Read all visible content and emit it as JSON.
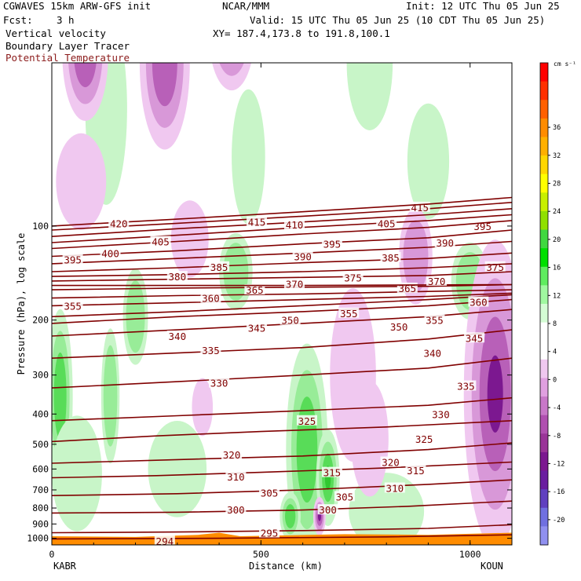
{
  "header": {
    "model": "CGWAVES 15km ARW-GFS init",
    "org": "NCAR/MMM",
    "init": "Init: 12 UTC Thu 05 Jun 25",
    "fcst_label": "Fcst:",
    "fcst_value": "3 h",
    "valid": "Valid: 15 UTC Thu 05 Jun 25 (10 CDT Thu 05 Jun 25)",
    "xy": "XY= 187.4,173.8 to 191.8,100.1",
    "field1": "Vertical velocity",
    "field2": "Boundary Layer Tracer",
    "field3": "Potential Temperature"
  },
  "colors": {
    "theta": "#800000",
    "pt_label": "#8b1a1a",
    "terrain": "#ff8c00"
  },
  "chart_data": {
    "type": "contour-cross-section",
    "ylabel": "Pressure (hPa), log scale",
    "xlabel": "Distance (km)",
    "x_left_label": "KABR",
    "x_right_label": "KOUN",
    "xlim": [
      0,
      1100
    ],
    "ylim_hpa": [
      1050,
      30
    ],
    "y_scale": "log",
    "x_ticks": [
      0,
      500,
      1000
    ],
    "y_ticks": [
      100,
      200,
      300,
      400,
      500,
      600,
      700,
      800,
      900,
      1000
    ],
    "colorbar": {
      "unit": "cm s⁻¹",
      "labels": [
        "36",
        "32",
        "28",
        "24",
        "20",
        "16",
        "12",
        "8",
        "4",
        "0",
        "-4",
        "-8",
        "-12",
        "-16",
        "-20"
      ],
      "colors": [
        "#ff0000",
        "#ff3000",
        "#ff6000",
        "#ff8c00",
        "#ffb000",
        "#ffd700",
        "#ffff00",
        "#c8f000",
        "#90e000",
        "#40d840",
        "#00e000",
        "#60ec60",
        "#a0f8a0",
        "#d4fcd4",
        "#ffffff",
        "#ffffff",
        "#f0c8f0",
        "#e0a0e0",
        "#c878c8",
        "#b050b0",
        "#9a3498",
        "#7c1890",
        "#6a1ea0",
        "#6040c0",
        "#7070e0",
        "#9090f0"
      ]
    },
    "theta_contours": [
      {
        "label": "294",
        "points": [
          [
            0,
            1005
          ],
          [
            400,
            1000
          ],
          [
            800,
            990
          ],
          [
            1100,
            975
          ]
        ],
        "label_pos": [
          [
            270,
            1020
          ]
        ]
      },
      {
        "label": "295",
        "points": [
          [
            0,
            960
          ],
          [
            300,
            955
          ],
          [
            600,
            945
          ],
          [
            900,
            930
          ],
          [
            1100,
            905
          ]
        ],
        "label_pos": [
          [
            520,
            960
          ]
        ]
      },
      {
        "label": "300",
        "points": [
          [
            0,
            830
          ],
          [
            300,
            825
          ],
          [
            600,
            812
          ],
          [
            850,
            790
          ],
          [
            1100,
            760
          ]
        ],
        "label_pos": [
          [
            440,
            810
          ],
          [
            660,
            810
          ]
        ]
      },
      {
        "label": "305",
        "points": [
          [
            0,
            730
          ],
          [
            300,
            720
          ],
          [
            600,
            700
          ],
          [
            900,
            672
          ],
          [
            1100,
            650
          ]
        ],
        "label_pos": [
          [
            520,
            715
          ],
          [
            700,
            735
          ]
        ]
      },
      {
        "label": "310",
        "points": [
          [
            0,
            640
          ],
          [
            250,
            630
          ],
          [
            500,
            615
          ],
          [
            800,
            595
          ],
          [
            1100,
            570
          ]
        ],
        "label_pos": [
          [
            440,
            635
          ],
          [
            820,
            690
          ]
        ]
      },
      {
        "label": "315",
        "points": [
          [
            0,
            575
          ],
          [
            300,
            560
          ],
          [
            600,
            545
          ],
          [
            900,
            520
          ],
          [
            1100,
            495
          ]
        ],
        "label_pos": [
          [
            670,
            615
          ],
          [
            870,
            605
          ]
        ]
      },
      {
        "label": "320",
        "points": [
          [
            0,
            490
          ],
          [
            250,
            470
          ],
          [
            500,
            455
          ],
          [
            800,
            440
          ],
          [
            1100,
            420
          ]
        ],
        "label_pos": [
          [
            430,
            540
          ],
          [
            810,
            570
          ]
        ]
      },
      {
        "label": "325",
        "points": [
          [
            0,
            420
          ],
          [
            300,
            405
          ],
          [
            600,
            390
          ],
          [
            900,
            375
          ],
          [
            1100,
            355
          ]
        ],
        "label_pos": [
          [
            610,
            420
          ],
          [
            890,
            480
          ]
        ]
      },
      {
        "label": "330",
        "points": [
          [
            0,
            330
          ],
          [
            300,
            315
          ],
          [
            600,
            300
          ],
          [
            900,
            285
          ],
          [
            1100,
            265
          ]
        ],
        "label_pos": [
          [
            400,
            318
          ],
          [
            930,
            400
          ]
        ]
      },
      {
        "label": "335",
        "points": [
          [
            0,
            265
          ],
          [
            300,
            255
          ],
          [
            600,
            245
          ],
          [
            900,
            230
          ],
          [
            1100,
            215
          ]
        ],
        "label_pos": [
          [
            380,
            250
          ],
          [
            990,
            325
          ]
        ]
      },
      {
        "label": "340",
        "points": [
          [
            0,
            225
          ],
          [
            300,
            215
          ],
          [
            600,
            205
          ],
          [
            900,
            195
          ],
          [
            1100,
            185
          ]
        ],
        "label_pos": [
          [
            300,
            225
          ],
          [
            910,
            255
          ]
        ]
      },
      {
        "label": "345",
        "points": [
          [
            0,
            205
          ],
          [
            300,
            195
          ],
          [
            600,
            188
          ],
          [
            900,
            180
          ],
          [
            1100,
            172
          ]
        ],
        "label_pos": [
          [
            490,
            212
          ],
          [
            1010,
            228
          ]
        ]
      },
      {
        "label": "350",
        "points": [
          [
            0,
            195
          ],
          [
            300,
            188
          ],
          [
            600,
            180
          ],
          [
            900,
            172
          ],
          [
            1100,
            166
          ]
        ],
        "label_pos": [
          [
            570,
            200
          ],
          [
            830,
            210
          ]
        ]
      },
      {
        "label": "355",
        "points": [
          [
            0,
            180
          ],
          [
            300,
            176
          ],
          [
            600,
            172
          ],
          [
            900,
            168
          ],
          [
            1100,
            164
          ]
        ],
        "label_pos": [
          [
            50,
            180
          ],
          [
            710,
            190
          ],
          [
            915,
            200
          ]
        ]
      },
      {
        "label": "360",
        "points": [
          [
            0,
            170
          ],
          [
            300,
            167
          ],
          [
            600,
            165
          ],
          [
            900,
            162
          ],
          [
            1100,
            160
          ]
        ],
        "label_pos": [
          [
            380,
            170
          ],
          [
            1020,
            175
          ]
        ]
      },
      {
        "label": "365",
        "points": [
          [
            0,
            160
          ],
          [
            300,
            158
          ],
          [
            600,
            157
          ],
          [
            900,
            156
          ],
          [
            1100,
            154
          ]
        ],
        "label_pos": [
          [
            485,
            160
          ],
          [
            850,
            158
          ]
        ]
      },
      {
        "label": "370",
        "points": [
          [
            0,
            155
          ],
          [
            600,
            155
          ],
          [
            1100,
            154
          ]
        ],
        "label_pos": [
          [
            580,
            153
          ],
          [
            920,
            150
          ]
        ]
      },
      {
        "label": "375",
        "points": [
          [
            0,
            150
          ],
          [
            300,
            148
          ],
          [
            600,
            146
          ],
          [
            900,
            144
          ],
          [
            1100,
            140
          ]
        ],
        "label_pos": [
          [
            720,
            146
          ],
          [
            1060,
            135
          ]
        ]
      },
      {
        "label": "380",
        "points": [
          [
            0,
            145
          ],
          [
            300,
            143
          ],
          [
            600,
            140
          ],
          [
            900,
            136
          ],
          [
            1100,
            132
          ]
        ],
        "label_pos": [
          [
            300,
            145
          ]
        ]
      },
      {
        "label": "385",
        "points": [
          [
            0,
            140
          ],
          [
            300,
            136
          ],
          [
            600,
            131
          ],
          [
            900,
            127
          ],
          [
            1100,
            122
          ]
        ],
        "label_pos": [
          [
            400,
            135
          ],
          [
            810,
            126
          ]
        ]
      },
      {
        "label": "390",
        "points": [
          [
            0,
            132
          ],
          [
            300,
            127
          ],
          [
            600,
            122
          ],
          [
            900,
            117
          ],
          [
            1100,
            112
          ]
        ],
        "label_pos": [
          [
            600,
            125
          ],
          [
            940,
            113
          ]
        ]
      },
      {
        "label": "395",
        "points": [
          [
            0,
            125
          ],
          [
            300,
            120
          ],
          [
            600,
            114
          ],
          [
            900,
            109
          ],
          [
            1100,
            103
          ]
        ],
        "label_pos": [
          [
            50,
            128
          ],
          [
            670,
            114
          ],
          [
            1030,
            100
          ]
        ]
      },
      {
        "label": "400",
        "points": [
          [
            0,
            118
          ],
          [
            300,
            112
          ],
          [
            600,
            106
          ],
          [
            900,
            101
          ],
          [
            1100,
            96
          ]
        ],
        "label_pos": [
          [
            140,
            122
          ]
        ]
      },
      {
        "label": "405",
        "points": [
          [
            0,
            113
          ],
          [
            300,
            107
          ],
          [
            600,
            101
          ],
          [
            900,
            96
          ],
          [
            1100,
            92
          ]
        ],
        "label_pos": [
          [
            260,
            112
          ],
          [
            800,
            98
          ]
        ]
      },
      {
        "label": "410",
        "points": [
          [
            0,
            108
          ],
          [
            300,
            102
          ],
          [
            600,
            97
          ],
          [
            900,
            92
          ],
          [
            1100,
            88
          ]
        ],
        "label_pos": [
          [
            580,
            99
          ]
        ]
      },
      {
        "label": "415",
        "points": [
          [
            0,
            103
          ],
          [
            300,
            98
          ],
          [
            600,
            93
          ],
          [
            900,
            88
          ],
          [
            1100,
            84
          ]
        ],
        "label_pos": [
          [
            490,
            97
          ],
          [
            880,
            87
          ]
        ]
      },
      {
        "label": "420",
        "points": [
          [
            0,
            100
          ],
          [
            300,
            95
          ],
          [
            600,
            90
          ],
          [
            900,
            85
          ],
          [
            1100,
            81
          ]
        ],
        "label_pos": [
          [
            160,
            98
          ]
        ]
      }
    ],
    "upward_regions": [
      {
        "cx": 20,
        "p": 350,
        "rx": 30,
        "ry": 0.18,
        "level": 2
      },
      {
        "cx": 140,
        "p": 350,
        "rx": 22,
        "ry": 0.14,
        "level": 1
      },
      {
        "cx": 200,
        "p": 195,
        "rx": 30,
        "ry": 0.1,
        "level": 1
      },
      {
        "cx": 610,
        "p": 520,
        "rx": 50,
        "ry": 0.22,
        "level": 2
      },
      {
        "cx": 660,
        "p": 640,
        "rx": 28,
        "ry": 0.1,
        "level": 3
      },
      {
        "cx": 570,
        "p": 850,
        "rx": 25,
        "ry": 0.05,
        "level": 2
      },
      {
        "cx": 440,
        "p": 140,
        "rx": 40,
        "ry": 0.08,
        "level": 1
      },
      {
        "cx": 1000,
        "p": 150,
        "rx": 45,
        "ry": 0.08,
        "level": 1
      },
      {
        "cx": 130,
        "p": 42,
        "rx": 50,
        "ry": 0.2,
        "level": 0
      },
      {
        "cx": 470,
        "p": 60,
        "rx": 40,
        "ry": 0.14,
        "level": 0
      },
      {
        "cx": 760,
        "p": 30,
        "rx": 55,
        "ry": 0.14,
        "level": 0
      },
      {
        "cx": 900,
        "p": 62,
        "rx": 50,
        "ry": 0.12,
        "level": 0
      },
      {
        "cx": 60,
        "p": 620,
        "rx": 60,
        "ry": 0.12,
        "level": 0
      },
      {
        "cx": 300,
        "p": 600,
        "rx": 70,
        "ry": 0.1,
        "level": 0
      },
      {
        "cx": 800,
        "p": 820,
        "rx": 90,
        "ry": 0.08,
        "level": 0
      }
    ],
    "downward_regions": [
      {
        "cx": 80,
        "p": 28,
        "rx": 55,
        "ry": 0.14,
        "level": 2
      },
      {
        "cx": 270,
        "p": 30,
        "rx": 60,
        "ry": 0.18,
        "level": 2
      },
      {
        "cx": 430,
        "p": 24,
        "rx": 55,
        "ry": 0.12,
        "level": 1
      },
      {
        "cx": 70,
        "p": 72,
        "rx": 60,
        "ry": 0.1,
        "level": 0
      },
      {
        "cx": 330,
        "p": 110,
        "rx": 45,
        "ry": 0.08,
        "level": 0
      },
      {
        "cx": 870,
        "p": 125,
        "rx": 40,
        "ry": 0.1,
        "level": 1
      },
      {
        "cx": 1060,
        "p": 345,
        "rx": 75,
        "ry": 0.32,
        "level": 3
      },
      {
        "cx": 720,
        "p": 300,
        "rx": 55,
        "ry": 0.18,
        "level": 0
      },
      {
        "cx": 760,
        "p": 480,
        "rx": 45,
        "ry": 0.12,
        "level": 0
      },
      {
        "cx": 640,
        "p": 850,
        "rx": 15,
        "ry": 0.04,
        "level": 3
      },
      {
        "cx": 360,
        "p": 380,
        "rx": 25,
        "ry": 0.06,
        "level": 0
      }
    ],
    "terrain_hpa": [
      [
        0,
        985
      ],
      [
        200,
        990
      ],
      [
        350,
        975
      ],
      [
        400,
        960
      ],
      [
        450,
        985
      ],
      [
        700,
        970
      ],
      [
        900,
        975
      ],
      [
        1100,
        960
      ]
    ]
  }
}
